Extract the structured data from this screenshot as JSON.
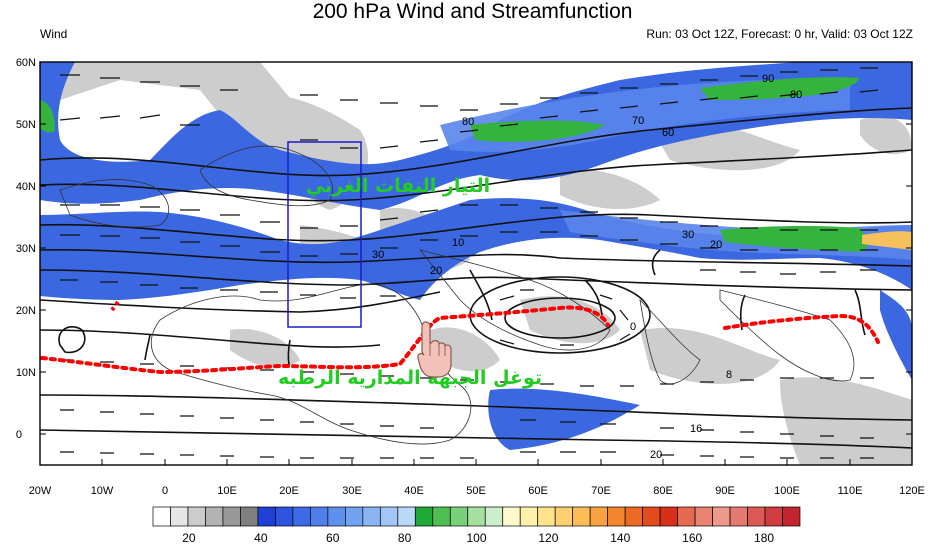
{
  "title": "200 hPa Wind and Streamfunction",
  "variable_label": "Wind",
  "run_info": "Run: 03 Oct 12Z, Forecast: 0 hr, Valid: 03 Oct 12Z",
  "lat_labels": [
    "60N",
    "50N",
    "40N",
    "30N",
    "20N",
    "10N",
    "0"
  ],
  "lon_labels": [
    "20W",
    "10W",
    "0",
    "10E",
    "20E",
    "30E",
    "40E",
    "50E",
    "60E",
    "70E",
    "80E",
    "90E",
    "100E",
    "110E",
    "120E"
  ],
  "annotations": {
    "jet_label": "التيار النفاث الغربي",
    "itcz_label": "توغل الجبهة المداريه الرطبه"
  },
  "contour_labels": [
    "90",
    "80",
    "80",
    "70",
    "60",
    "30",
    "20",
    "30",
    "20",
    "10",
    "0",
    "16",
    "20",
    "8"
  ],
  "colorbar": {
    "labels": [
      "20",
      "40",
      "60",
      "80",
      "100",
      "120",
      "140",
      "160",
      "180"
    ],
    "colors": [
      "#ffffff",
      "#e6e6e6",
      "#cccccc",
      "#b3b3b3",
      "#999999",
      "#808080",
      "#1f3fd6",
      "#2f55e0",
      "#3f6ae6",
      "#4f7fea",
      "#6090ee",
      "#73a2f0",
      "#8ab4f2",
      "#a2c6f5",
      "#bcd8f8",
      "#20a838",
      "#4cbf50",
      "#7ad07a",
      "#a6e0a0",
      "#cdeecb",
      "#fffacd",
      "#fff2a8",
      "#ffe38a",
      "#ffd070",
      "#ffbb55",
      "#f9a23f",
      "#f3872f",
      "#ec6a24",
      "#e34a1c",
      "#d83018",
      "#e66a50",
      "#ea8270",
      "#ee9a8a",
      "#e57a70",
      "#dc5a55",
      "#d03c40",
      "#c42430"
    ],
    "ticks": [
      20,
      40,
      60,
      80,
      100,
      120,
      140,
      160,
      180
    ]
  },
  "colors": {
    "jet_blue": "#3b68e0",
    "jet_green": "#35b33f",
    "shade_gray": "#c4c4c4",
    "front_red": "#ff0000",
    "box_blue": "#0000cc",
    "annotation_green": "#22cc22"
  },
  "icons": [
    "hand-pointer-icon"
  ]
}
